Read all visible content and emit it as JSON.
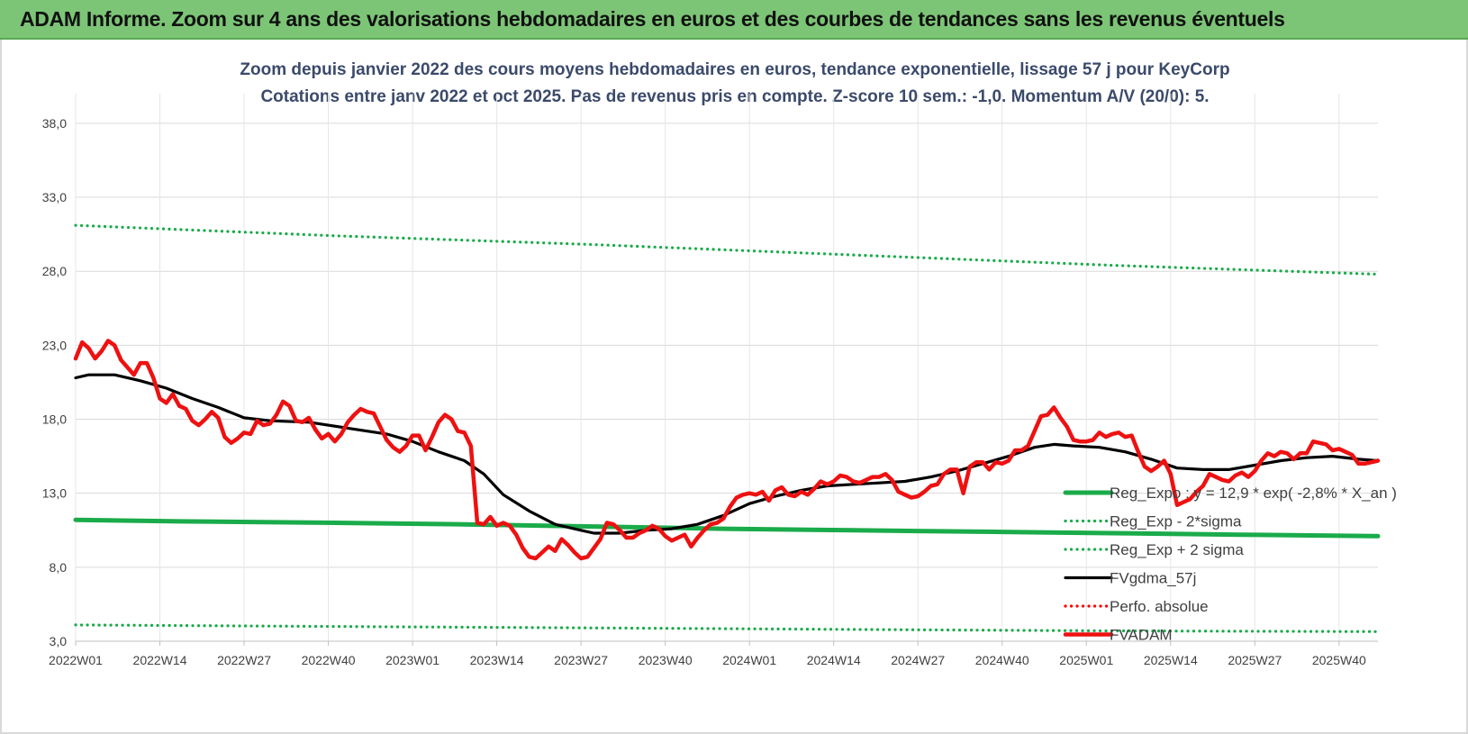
{
  "header": {
    "banner_title": "ADAM Informe. Zoom sur 4 ans des valorisations hebdomadaires en euros et des courbes de tendances sans les revenus éventuels"
  },
  "chart_data": {
    "type": "line",
    "title": "Zoom depuis janvier 2022 des cours moyens hebdomadaires en euros, tendance exponentielle, lissage 57 j pour KeyCorp",
    "subtitle": "Cotations entre janv 2022 et oct 2025. Pas de revenus pris en compte. Z-score 10 sem.: -1,0.  Momentum A/V (20/0): 5.",
    "xlabel": "",
    "ylabel": "",
    "ylim": [
      3,
      40
    ],
    "yticks": [
      "3,0",
      "8,0",
      "13,0",
      "18,0",
      "23,0",
      "28,0",
      "33,0",
      "38,0"
    ],
    "ytick_values": [
      3,
      8,
      13,
      18,
      23,
      28,
      33,
      38
    ],
    "xticks": [
      "2022W01",
      "2022W14",
      "2022W27",
      "2022W40",
      "2023W01",
      "2023W14",
      "2023W27",
      "2023W40",
      "2024W01",
      "2024W14",
      "2024W27",
      "2024W40",
      "2025W01",
      "2025W14",
      "2025W27",
      "2025W40"
    ],
    "xtick_weeks": [
      0,
      13,
      26,
      39,
      52,
      65,
      78,
      91,
      104,
      117,
      130,
      143,
      156,
      169,
      182,
      195
    ],
    "x_count": 202,
    "grid": true,
    "legend_position": "bottom-right",
    "series": [
      {
        "name": "Reg_Expo : y = 12,9 * exp( -2,8% *  X_an )",
        "style": "solid-thick",
        "color": "#1aab4a",
        "points": [
          [
            0,
            11.2
          ],
          [
            16,
            11.1
          ],
          [
            40,
            11.0
          ],
          [
            60,
            10.9
          ],
          [
            80,
            10.75
          ],
          [
            100,
            10.6
          ],
          [
            120,
            10.5
          ],
          [
            140,
            10.4
          ],
          [
            160,
            10.3
          ],
          [
            180,
            10.2
          ],
          [
            201,
            10.1
          ]
        ]
      },
      {
        "name": "Reg_Exp - 2*sigma",
        "style": "dotted",
        "color": "#1aab4a",
        "points": [
          [
            0,
            4.1
          ],
          [
            40,
            4.0
          ],
          [
            80,
            3.9
          ],
          [
            120,
            3.8
          ],
          [
            160,
            3.7
          ],
          [
            201,
            3.65
          ]
        ]
      },
      {
        "name": "Reg_Exp + 2 sigma",
        "style": "dotted",
        "color": "#1aab4a",
        "points": [
          [
            0,
            31.1
          ],
          [
            40,
            30.4
          ],
          [
            80,
            29.8
          ],
          [
            120,
            29.1
          ],
          [
            160,
            28.4
          ],
          [
            201,
            27.8
          ]
        ]
      },
      {
        "name": "FVgdma_57j",
        "style": "solid",
        "color": "#000000",
        "points": [
          [
            0,
            20.8
          ],
          [
            2,
            21.0
          ],
          [
            6,
            21.0
          ],
          [
            10,
            20.6
          ],
          [
            14,
            20.1
          ],
          [
            18,
            19.4
          ],
          [
            22,
            18.8
          ],
          [
            26,
            18.1
          ],
          [
            30,
            17.9
          ],
          [
            36,
            17.8
          ],
          [
            42,
            17.4
          ],
          [
            48,
            17.0
          ],
          [
            52,
            16.5
          ],
          [
            56,
            15.8
          ],
          [
            60,
            15.2
          ],
          [
            63,
            14.3
          ],
          [
            66,
            12.9
          ],
          [
            70,
            11.8
          ],
          [
            74,
            10.9
          ],
          [
            78,
            10.5
          ],
          [
            80,
            10.3
          ],
          [
            84,
            10.3
          ],
          [
            88,
            10.5
          ],
          [
            92,
            10.6
          ],
          [
            96,
            10.9
          ],
          [
            100,
            11.5
          ],
          [
            104,
            12.3
          ],
          [
            108,
            12.8
          ],
          [
            112,
            13.2
          ],
          [
            116,
            13.5
          ],
          [
            120,
            13.6
          ],
          [
            124,
            13.7
          ],
          [
            128,
            13.8
          ],
          [
            132,
            14.1
          ],
          [
            136,
            14.5
          ],
          [
            140,
            15.0
          ],
          [
            144,
            15.5
          ],
          [
            148,
            16.1
          ],
          [
            151,
            16.3
          ],
          [
            154,
            16.2
          ],
          [
            158,
            16.1
          ],
          [
            162,
            15.8
          ],
          [
            166,
            15.3
          ],
          [
            170,
            14.7
          ],
          [
            174,
            14.6
          ],
          [
            178,
            14.6
          ],
          [
            182,
            14.9
          ],
          [
            186,
            15.2
          ],
          [
            190,
            15.4
          ],
          [
            194,
            15.5
          ],
          [
            198,
            15.3
          ],
          [
            201,
            15.2
          ]
        ]
      },
      {
        "name": "Perfo. absolue",
        "style": "dotted",
        "color": "#ff0000",
        "points": []
      },
      {
        "name": "FVADAM",
        "style": "solid-thick",
        "color": "#ee1111",
        "points": [
          [
            0,
            22.1
          ],
          [
            1,
            23.2
          ],
          [
            2,
            22.8
          ],
          [
            3,
            22.1
          ],
          [
            4,
            22.6
          ],
          [
            5,
            23.3
          ],
          [
            6,
            23.0
          ],
          [
            7,
            22.0
          ],
          [
            8,
            21.5
          ],
          [
            9,
            21.0
          ],
          [
            10,
            21.8
          ],
          [
            11,
            21.8
          ],
          [
            12,
            20.8
          ],
          [
            13,
            19.4
          ],
          [
            14,
            19.1
          ],
          [
            15,
            19.7
          ],
          [
            16,
            18.9
          ],
          [
            17,
            18.7
          ],
          [
            18,
            17.9
          ],
          [
            19,
            17.6
          ],
          [
            20,
            18.0
          ],
          [
            21,
            18.5
          ],
          [
            22,
            18.1
          ],
          [
            23,
            16.8
          ],
          [
            24,
            16.4
          ],
          [
            25,
            16.7
          ],
          [
            26,
            17.1
          ],
          [
            27,
            17.0
          ],
          [
            28,
            17.9
          ],
          [
            29,
            17.6
          ],
          [
            30,
            17.7
          ],
          [
            31,
            18.3
          ],
          [
            32,
            19.2
          ],
          [
            33,
            18.9
          ],
          [
            34,
            17.9
          ],
          [
            35,
            17.8
          ],
          [
            36,
            18.1
          ],
          [
            37,
            17.3
          ],
          [
            38,
            16.7
          ],
          [
            39,
            17.0
          ],
          [
            40,
            16.5
          ],
          [
            41,
            17.0
          ],
          [
            42,
            17.8
          ],
          [
            43,
            18.3
          ],
          [
            44,
            18.7
          ],
          [
            45,
            18.5
          ],
          [
            46,
            18.4
          ],
          [
            47,
            17.5
          ],
          [
            48,
            16.6
          ],
          [
            49,
            16.1
          ],
          [
            50,
            15.8
          ],
          [
            51,
            16.2
          ],
          [
            52,
            16.9
          ],
          [
            53,
            16.9
          ],
          [
            54,
            15.9
          ],
          [
            55,
            16.8
          ],
          [
            56,
            17.8
          ],
          [
            57,
            18.3
          ],
          [
            58,
            18.0
          ],
          [
            59,
            17.2
          ],
          [
            60,
            17.1
          ],
          [
            61,
            16.2
          ],
          [
            62,
            11.0
          ],
          [
            63,
            10.9
          ],
          [
            64,
            11.4
          ],
          [
            65,
            10.8
          ],
          [
            66,
            11.0
          ],
          [
            67,
            10.8
          ],
          [
            68,
            10.2
          ],
          [
            69,
            9.3
          ],
          [
            70,
            8.7
          ],
          [
            71,
            8.6
          ],
          [
            72,
            9.0
          ],
          [
            73,
            9.4
          ],
          [
            74,
            9.1
          ],
          [
            75,
            9.9
          ],
          [
            76,
            9.5
          ],
          [
            77,
            9.0
          ],
          [
            78,
            8.6
          ],
          [
            79,
            8.7
          ],
          [
            80,
            9.3
          ],
          [
            81,
            9.9
          ],
          [
            82,
            11.0
          ],
          [
            83,
            10.9
          ],
          [
            84,
            10.5
          ],
          [
            85,
            10.0
          ],
          [
            86,
            10.0
          ],
          [
            87,
            10.3
          ],
          [
            88,
            10.5
          ],
          [
            89,
            10.8
          ],
          [
            90,
            10.6
          ],
          [
            91,
            10.1
          ],
          [
            92,
            9.8
          ],
          [
            93,
            10.0
          ],
          [
            94,
            10.2
          ],
          [
            95,
            9.4
          ],
          [
            96,
            10.0
          ],
          [
            97,
            10.5
          ],
          [
            98,
            10.9
          ],
          [
            99,
            11.0
          ],
          [
            100,
            11.3
          ],
          [
            101,
            12.1
          ],
          [
            102,
            12.7
          ],
          [
            103,
            12.9
          ],
          [
            104,
            13.0
          ],
          [
            105,
            12.9
          ],
          [
            106,
            13.1
          ],
          [
            107,
            12.5
          ],
          [
            108,
            13.2
          ],
          [
            109,
            13.4
          ],
          [
            110,
            12.9
          ],
          [
            111,
            12.8
          ],
          [
            112,
            13.1
          ],
          [
            113,
            12.9
          ],
          [
            114,
            13.3
          ],
          [
            115,
            13.8
          ],
          [
            116,
            13.6
          ],
          [
            117,
            13.8
          ],
          [
            118,
            14.2
          ],
          [
            119,
            14.1
          ],
          [
            120,
            13.8
          ],
          [
            121,
            13.7
          ],
          [
            122,
            13.9
          ],
          [
            123,
            14.1
          ],
          [
            124,
            14.1
          ],
          [
            125,
            14.3
          ],
          [
            126,
            13.9
          ],
          [
            127,
            13.1
          ],
          [
            128,
            12.9
          ],
          [
            129,
            12.7
          ],
          [
            130,
            12.8
          ],
          [
            131,
            13.1
          ],
          [
            132,
            13.5
          ],
          [
            133,
            13.6
          ],
          [
            134,
            14.3
          ],
          [
            135,
            14.6
          ],
          [
            136,
            14.6
          ],
          [
            137,
            13.0
          ],
          [
            138,
            14.8
          ],
          [
            139,
            15.1
          ],
          [
            140,
            15.1
          ],
          [
            141,
            14.6
          ],
          [
            142,
            15.1
          ],
          [
            143,
            15.0
          ],
          [
            144,
            15.2
          ],
          [
            145,
            15.9
          ],
          [
            146,
            15.9
          ],
          [
            147,
            16.2
          ],
          [
            148,
            17.2
          ],
          [
            149,
            18.2
          ],
          [
            150,
            18.3
          ],
          [
            151,
            18.8
          ],
          [
            152,
            18.1
          ],
          [
            153,
            17.5
          ],
          [
            154,
            16.6
          ],
          [
            155,
            16.5
          ],
          [
            156,
            16.5
          ],
          [
            157,
            16.6
          ],
          [
            158,
            17.1
          ],
          [
            159,
            16.8
          ],
          [
            160,
            17.0
          ],
          [
            161,
            17.1
          ],
          [
            162,
            16.8
          ],
          [
            163,
            16.9
          ],
          [
            164,
            15.8
          ],
          [
            165,
            14.8
          ],
          [
            166,
            14.5
          ],
          [
            167,
            14.8
          ],
          [
            168,
            15.2
          ],
          [
            169,
            14.3
          ],
          [
            170,
            12.2
          ],
          [
            171,
            12.4
          ],
          [
            172,
            12.6
          ],
          [
            173,
            13.1
          ],
          [
            174,
            13.5
          ],
          [
            175,
            14.3
          ],
          [
            176,
            14.1
          ],
          [
            177,
            13.9
          ],
          [
            178,
            13.8
          ],
          [
            179,
            14.2
          ],
          [
            180,
            14.4
          ],
          [
            181,
            14.1
          ],
          [
            182,
            14.5
          ],
          [
            183,
            15.2
          ],
          [
            184,
            15.7
          ],
          [
            185,
            15.5
          ],
          [
            186,
            15.8
          ],
          [
            187,
            15.7
          ],
          [
            188,
            15.3
          ],
          [
            189,
            15.7
          ],
          [
            190,
            15.7
          ],
          [
            191,
            16.5
          ],
          [
            192,
            16.4
          ],
          [
            193,
            16.3
          ],
          [
            194,
            15.9
          ],
          [
            195,
            16.0
          ],
          [
            196,
            15.8
          ],
          [
            197,
            15.6
          ],
          [
            198,
            15.0
          ],
          [
            199,
            15.0
          ],
          [
            200,
            15.1
          ],
          [
            201,
            15.2
          ]
        ]
      }
    ]
  }
}
